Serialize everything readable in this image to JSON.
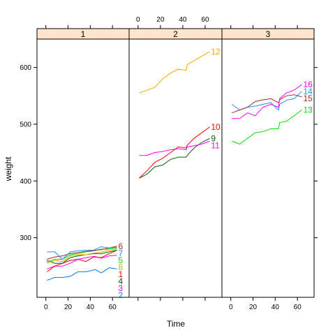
{
  "chart_data": {
    "type": "line",
    "xlabel": "Time",
    "ylabel": "weight",
    "xlim": [
      -8,
      75
    ],
    "ylim": [
      195,
      650
    ],
    "x_ticks": [
      0,
      20,
      40,
      60
    ],
    "y_ticks": [
      300,
      400,
      500,
      600
    ],
    "colors": {
      "1": "#ff0000",
      "2": "#0080ff",
      "3": "#ff00ff",
      "4": "#006400",
      "5": "#00e000",
      "6": "#a52a2a",
      "7": "#1e90ff",
      "8": "#ffa500",
      "9": "#006400",
      "10": "#ff0000",
      "11": "#ff00ff",
      "12": "#ffa500",
      "13": "#00e000",
      "14": "#1e90ff",
      "15": "#a52a2a",
      "16": "#ff00ff"
    },
    "panels": [
      {
        "strip": "1",
        "series": [
          {
            "name": "2",
            "x": [
              1,
              8,
              15,
              22,
              29,
              36,
              43,
              44,
              50,
              57,
              64
            ],
            "y": [
              225,
              230,
              230,
              232,
              240,
              240,
              243,
              244,
              238,
              247,
              245
            ]
          },
          {
            "name": "3",
            "x": [
              1,
              8,
              15,
              22,
              29,
              36,
              43,
              44,
              50,
              57,
              64
            ],
            "y": [
              245,
              250,
              250,
              255,
              262,
              265,
              267,
              267,
              264,
              268,
              269
            ]
          },
          {
            "name": "1",
            "x": [
              1,
              8,
              15,
              22,
              29,
              36,
              43,
              44,
              50,
              57,
              64
            ],
            "y": [
              240,
              250,
              255,
              260,
              262,
              258,
              266,
              266,
              265,
              272,
              278
            ]
          },
          {
            "name": "4",
            "x": [
              1,
              8,
              15,
              22,
              29,
              36,
              43,
              44,
              50,
              57,
              64
            ],
            "y": [
              260,
              255,
              255,
              265,
              268,
              270,
              272,
              272,
              272,
              275,
              278
            ]
          },
          {
            "name": "8",
            "x": [
              1,
              8,
              15,
              22,
              29,
              36,
              43,
              44,
              50,
              57,
              64
            ],
            "y": [
              255,
              260,
              258,
              268,
              270,
              270,
              273,
              273,
              275,
              278,
              280
            ]
          },
          {
            "name": "5",
            "x": [
              1,
              8,
              15,
              22,
              29,
              36,
              43,
              44,
              50,
              57,
              64
            ],
            "y": [
              257,
              262,
              262,
              270,
              272,
              275,
              277,
              277,
              280,
              280,
              282
            ]
          },
          {
            "name": "6",
            "x": [
              1,
              8,
              15,
              22,
              29,
              36,
              43,
              44,
              50,
              57,
              64
            ],
            "y": [
              262,
              266,
              268,
              272,
              274,
              276,
              277,
              278,
              279,
              282,
              285
            ]
          },
          {
            "name": "7",
            "x": [
              1,
              8,
              15,
              22,
              29,
              36,
              43,
              44,
              50,
              57,
              64
            ],
            "y": [
              275,
              275,
              262,
              275,
              277,
              278,
              278,
              279,
              284,
              282,
              283
            ]
          }
        ]
      },
      {
        "strip": "2",
        "series": [
          {
            "name": "9",
            "x": [
              1,
              8,
              15,
              22,
              29,
              36,
              43,
              44,
              50,
              57,
              64
            ],
            "y": [
              405,
              412,
              425,
              428,
              438,
              442,
              442,
              445,
              458,
              468,
              475
            ]
          },
          {
            "name": "10",
            "x": [
              1,
              8,
              15,
              22,
              29,
              36,
              43,
              44,
              50,
              57,
              64
            ],
            "y": [
              405,
              418,
              433,
              440,
              450,
              460,
              458,
              463,
              475,
              485,
              495
            ]
          },
          {
            "name": "11",
            "x": [
              1,
              8,
              15,
              22,
              29,
              36,
              43,
              44,
              50,
              57,
              64
            ],
            "y": [
              445,
              445,
              450,
              452,
              455,
              457,
              455,
              460,
              462,
              465,
              470
            ]
          },
          {
            "name": "12",
            "x": [
              1,
              8,
              15,
              22,
              29,
              36,
              43,
              44,
              50,
              57,
              64
            ],
            "y": [
              555,
              560,
              565,
              580,
              590,
              597,
              595,
              605,
              612,
              620,
              628
            ]
          }
        ]
      },
      {
        "strip": "3",
        "series": [
          {
            "name": "13",
            "x": [
              1,
              8,
              15,
              22,
              29,
              36,
              43,
              44,
              50,
              57,
              64
            ],
            "y": [
              470,
              465,
              475,
              485,
              487,
              492,
              492,
              503,
              505,
              515,
              525
            ]
          },
          {
            "name": "14",
            "x": [
              1,
              8,
              15,
              22,
              29,
              36,
              43,
              44,
              50,
              57,
              64
            ],
            "y": [
              535,
              525,
              530,
              532,
              535,
              538,
              525,
              535,
              542,
              545,
              558
            ]
          },
          {
            "name": "15",
            "x": [
              1,
              8,
              15,
              22,
              29,
              36,
              43,
              44,
              50,
              57,
              64
            ],
            "y": [
              520,
              525,
              530,
              540,
              543,
              545,
              538,
              543,
              550,
              552,
              548
            ]
          },
          {
            "name": "16",
            "x": [
              1,
              8,
              15,
              22,
              29,
              36,
              43,
              44,
              50,
              57,
              64
            ],
            "y": [
              510,
              510,
              520,
              515,
              530,
              535,
              530,
              545,
              555,
              560,
              570
            ]
          }
        ]
      }
    ]
  }
}
